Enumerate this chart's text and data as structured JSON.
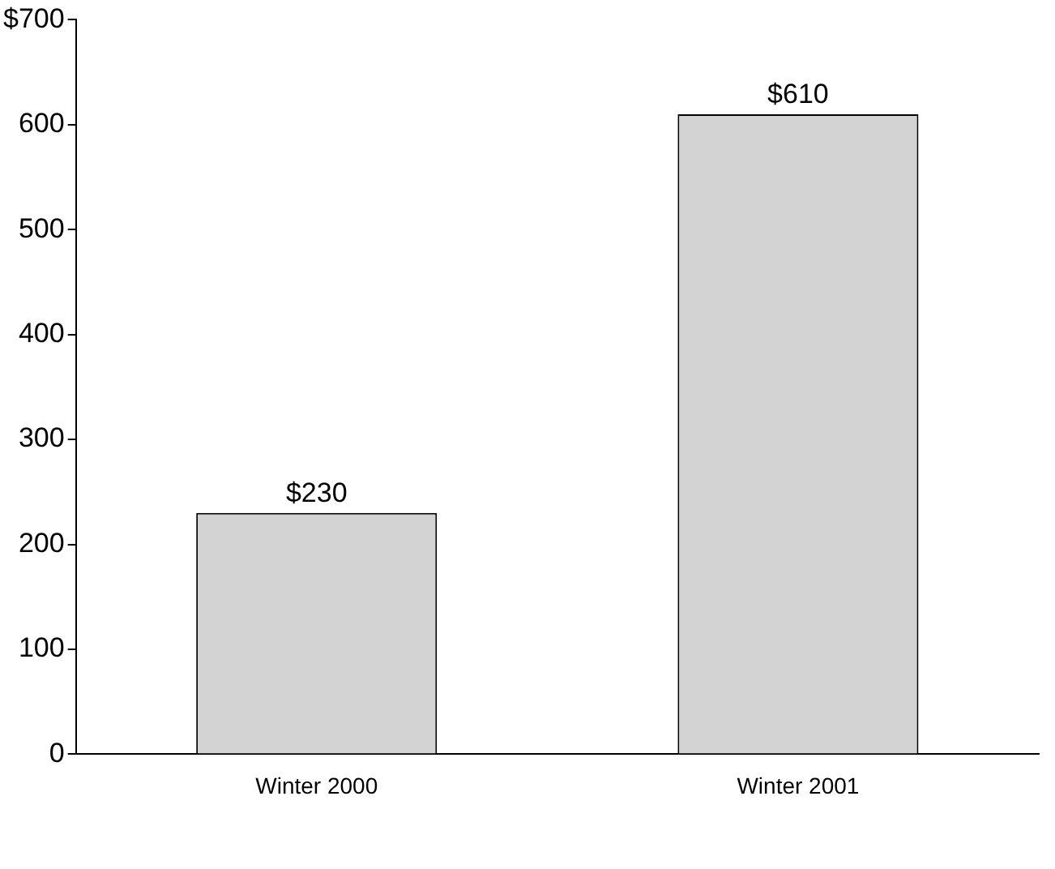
{
  "chart_data": {
    "type": "bar",
    "categories": [
      "Winter 2000",
      "Winter 2001"
    ],
    "values": [
      230,
      610
    ],
    "color": "#d3d3d3",
    "value_labels": [
      "$230",
      "$610"
    ],
    "ylim": [
      0,
      700
    ],
    "yticks": [
      0,
      100,
      200,
      300,
      400,
      500,
      600,
      {
        "value": 700,
        "label": "$700"
      }
    ],
    "grid": false,
    "legend": false
  }
}
